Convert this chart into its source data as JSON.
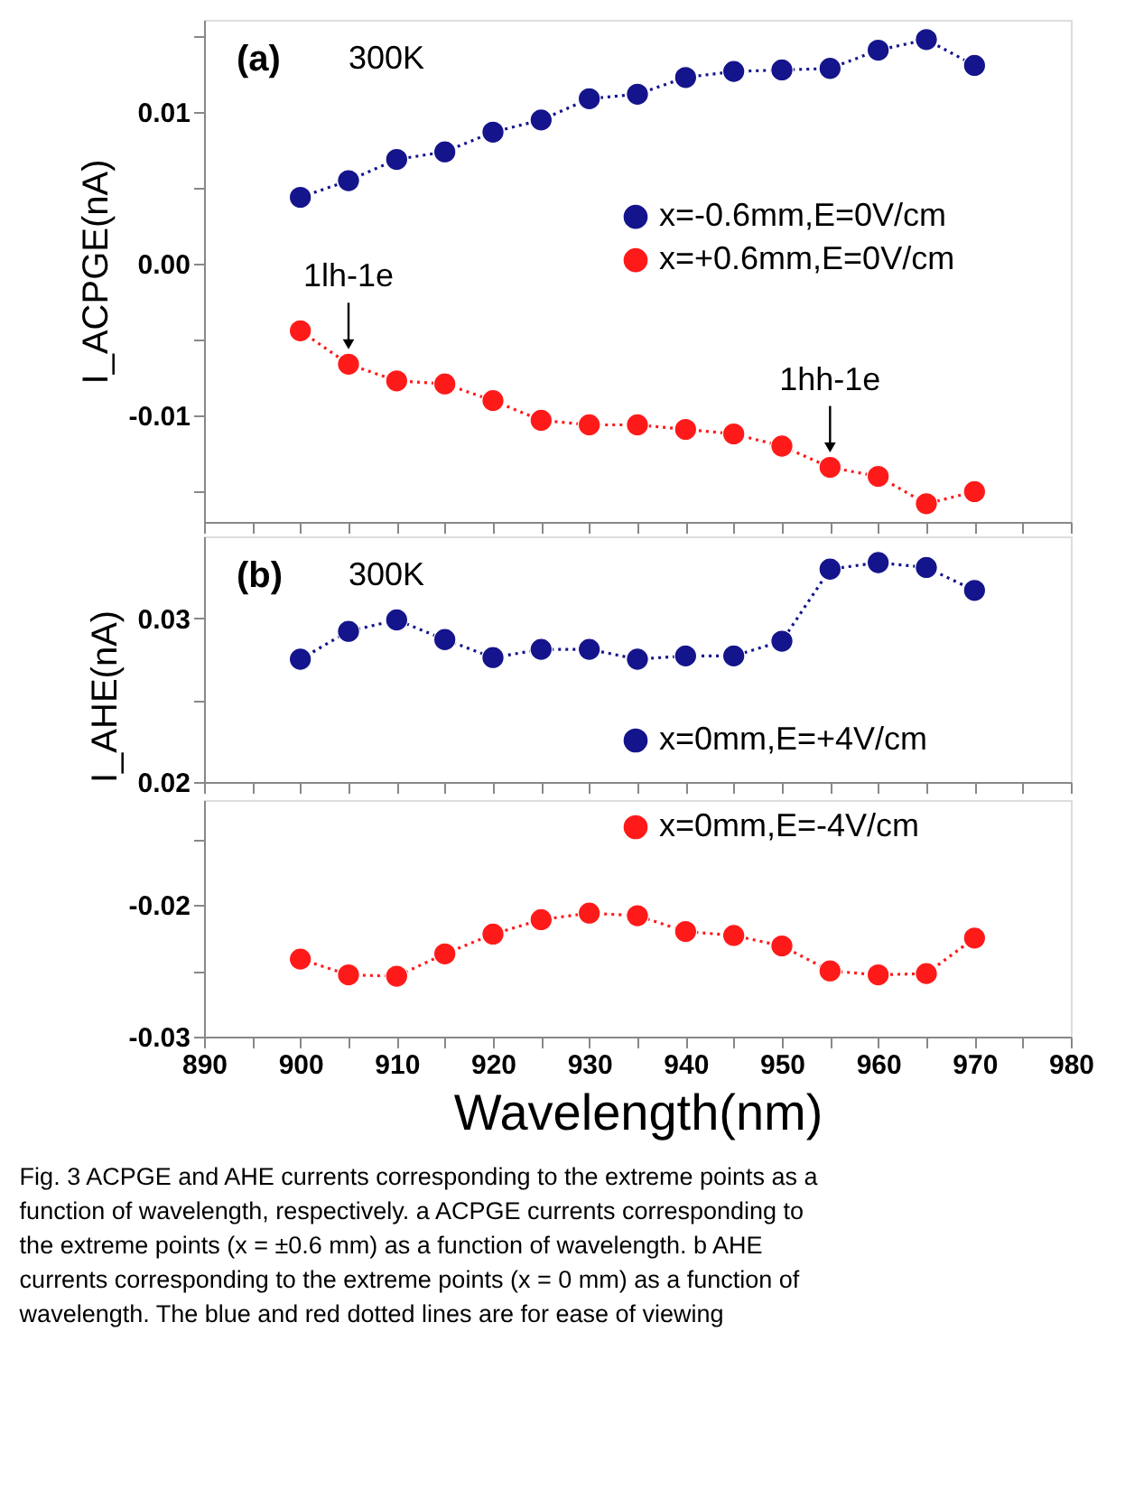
{
  "chart_data": [
    {
      "type": "line",
      "ylabel": "I_ACPGE(nA)",
      "x": [
        900,
        905,
        910,
        915,
        920,
        925,
        930,
        935,
        940,
        945,
        950,
        955,
        960,
        965,
        970
      ],
      "series": [
        {
          "name": "x=-0.6mm,E=0V/cm",
          "color": "#14148c",
          "values": [
            0.0044,
            0.0055,
            0.0069,
            0.0074,
            0.0087,
            0.0095,
            0.0109,
            0.0112,
            0.0123,
            0.0127,
            0.0128,
            0.0129,
            0.0141,
            0.0148,
            0.0131
          ]
        },
        {
          "name": "x=+0.6mm,E=0V/cm",
          "color": "#ff1a1a",
          "values": [
            -0.0044,
            -0.0066,
            -0.0077,
            -0.0079,
            -0.009,
            -0.0103,
            -0.0106,
            -0.0106,
            -0.0109,
            -0.0112,
            -0.012,
            -0.0134,
            -0.014,
            -0.0158,
            -0.015
          ]
        }
      ],
      "xlim": [
        890,
        980
      ],
      "xticks": [
        890,
        {
          "value": 895,
          "label": null
        },
        900,
        {
          "value": 905,
          "label": null
        },
        910,
        {
          "value": 915,
          "label": null
        },
        920,
        {
          "value": 925,
          "label": null
        },
        930,
        {
          "value": 935,
          "label": null
        },
        940,
        {
          "value": 945,
          "label": null
        },
        950,
        {
          "value": 955,
          "label": null
        },
        960,
        {
          "value": 965,
          "label": null
        },
        970,
        {
          "value": 975,
          "label": null
        },
        980
      ],
      "ylim": [
        -0.017,
        0.0161
      ],
      "yticks": [
        {
          "value": -0.015,
          "label": null
        },
        -0.01,
        {
          "value": -0.005,
          "label": null
        },
        {
          "value": 0,
          "label": "0.00"
        },
        {
          "value": 0.005,
          "label": null
        },
        0.01,
        {
          "value": 0.015,
          "label": null
        }
      ],
      "tick_labels": "y",
      "grid": false,
      "legend": "right",
      "marker": "circle",
      "line_style": "dotted",
      "annotations": [
        "(a)",
        "300K",
        {
          "text": "1lh-1e",
          "x": 905,
          "y": -0.0066
        },
        {
          "text": "1hh-1e",
          "x": 955,
          "y": -0.0134
        }
      ]
    },
    {
      "type": "line",
      "ylabel": "I_AHE(nA)",
      "x": [
        900,
        905,
        910,
        915,
        920,
        925,
        930,
        935,
        940,
        945,
        950,
        955,
        960,
        965,
        970
      ],
      "series": [
        {
          "name": "x=0mm,E=+4V/cm",
          "color": "#14148c",
          "values": [
            0.0275,
            0.0292,
            0.0299,
            0.0287,
            0.0276,
            0.0281,
            0.0281,
            0.0275,
            0.0277,
            0.0277,
            0.0286,
            0.033,
            0.0334,
            0.0331,
            0.0317
          ]
        }
      ],
      "xlim": [
        890,
        980
      ],
      "xticks": [
        890,
        {
          "value": 895,
          "label": null
        },
        900,
        {
          "value": 905,
          "label": null
        },
        910,
        {
          "value": 915,
          "label": null
        },
        920,
        {
          "value": 925,
          "label": null
        },
        930,
        {
          "value": 935,
          "label": null
        },
        940,
        {
          "value": 945,
          "label": null
        },
        950,
        {
          "value": 955,
          "label": null
        },
        960,
        {
          "value": 965,
          "label": null
        },
        970,
        {
          "value": 975,
          "label": null
        },
        980
      ],
      "ylim": [
        0.02,
        0.035
      ],
      "yticks": [
        0.02,
        {
          "value": 0.025,
          "label": null
        },
        0.03
      ],
      "tick_labels": "y",
      "grid": false,
      "legend": "bottom right",
      "marker": "circle",
      "line_style": "dotted",
      "annotations": [
        "(b)",
        "300K"
      ]
    },
    {
      "type": "line",
      "xlabel": "Wavelength(nm)",
      "x": [
        900,
        905,
        910,
        915,
        920,
        925,
        930,
        935,
        940,
        945,
        950,
        955,
        960,
        965,
        970
      ],
      "series": [
        {
          "name": "x=0mm,E=-4V/cm",
          "color": "#ff1a1a",
          "values": [
            -0.0241,
            -0.0253,
            -0.0254,
            -0.0237,
            -0.0222,
            -0.0211,
            -0.0206,
            -0.0208,
            -0.022,
            -0.0223,
            -0.0231,
            -0.025,
            -0.0253,
            -0.0252,
            -0.0225
          ]
        }
      ],
      "xlim": [
        890,
        980
      ],
      "xticks": [
        890,
        {
          "value": 895,
          "label": null
        },
        900,
        {
          "value": 905,
          "label": null
        },
        910,
        {
          "value": 915,
          "label": null
        },
        920,
        {
          "value": 925,
          "label": null
        },
        930,
        {
          "value": 935,
          "label": null
        },
        940,
        {
          "value": 945,
          "label": null
        },
        950,
        {
          "value": 955,
          "label": null
        },
        960,
        {
          "value": 965,
          "label": null
        },
        970,
        {
          "value": 975,
          "label": null
        },
        980
      ],
      "ylim": [
        -0.03,
        -0.012
      ],
      "yticks": [
        -0.03,
        {
          "value": -0.025,
          "label": null
        },
        -0.02,
        {
          "value": -0.015,
          "label": null
        }
      ],
      "grid": false,
      "legend": "top right",
      "marker": "circle",
      "line_style": "dotted",
      "annotations": [
        "Fig. 3 ACPGE and AHE currents corresponding to the extreme points as a function of wavelength, respectively. a ACPGE currents corresponding to the extreme points (x = ±0.6 mm) as a function of wavelength. b AHE currents corresponding to the extreme points (x = 0 mm) as a function of wavelength. The blue and red dotted lines are for ease of viewing"
      ]
    }
  ]
}
